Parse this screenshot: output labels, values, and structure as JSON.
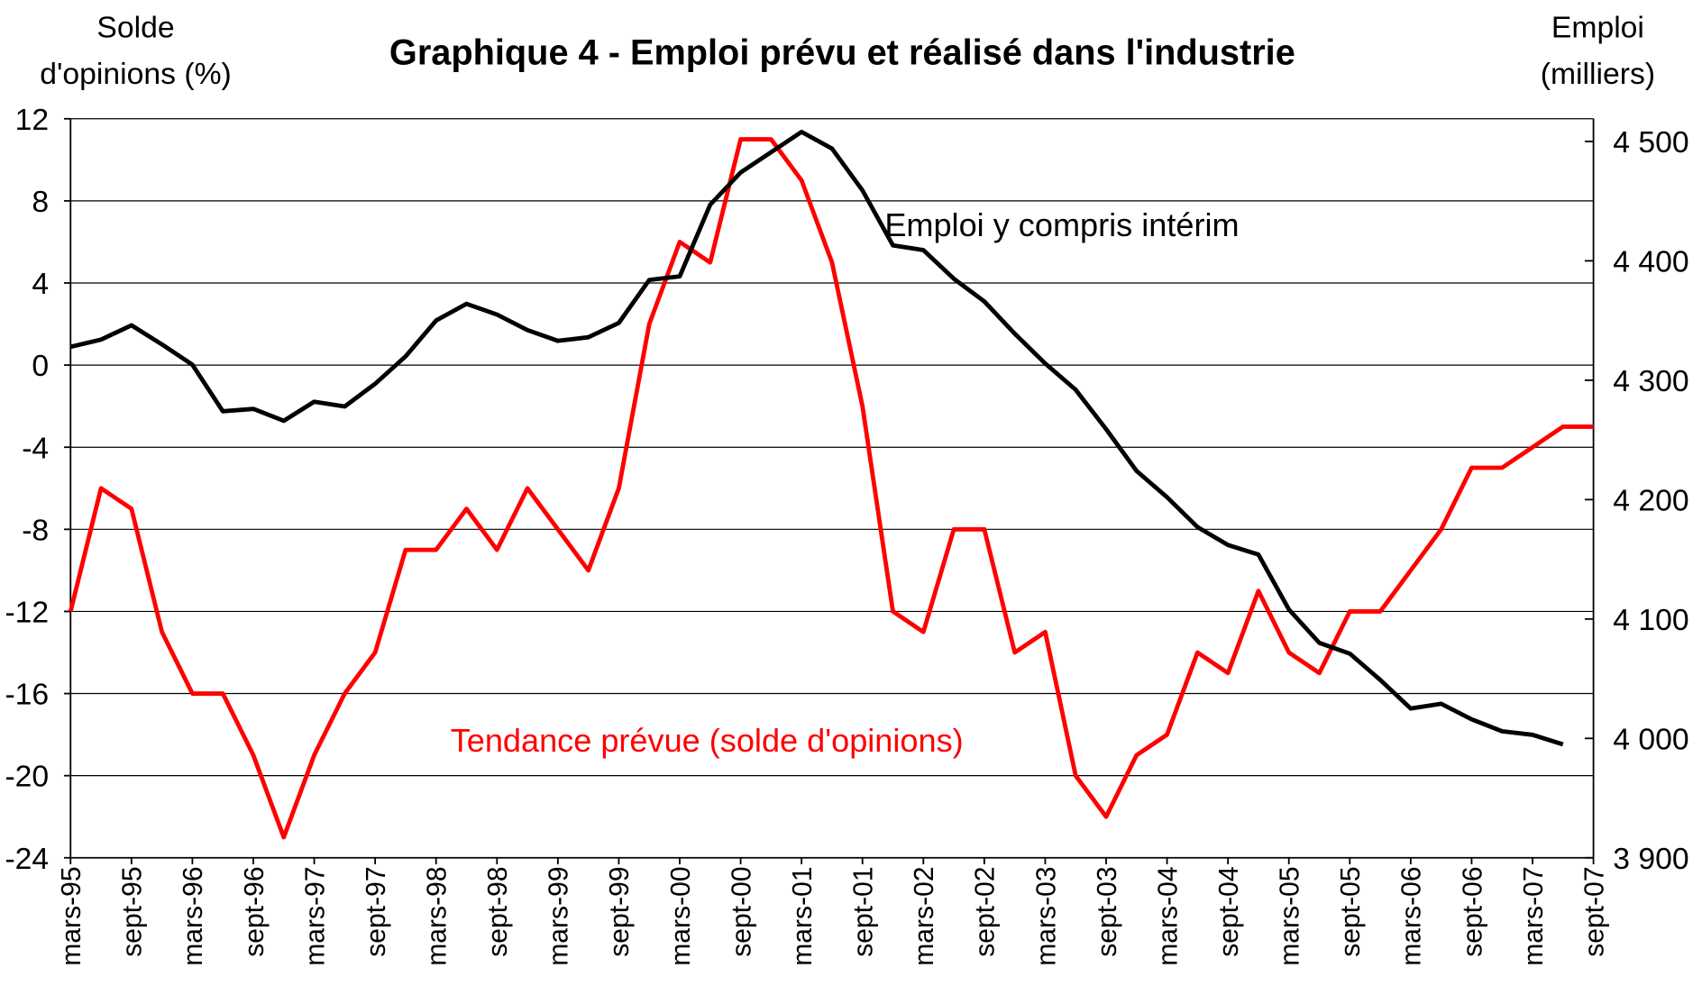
{
  "chart_data": {
    "type": "line",
    "title": "Graphique 4 - Emploi prévu et réalisé dans l'industrie",
    "y_label": [
      "Solde",
      "d'opinions (%)"
    ],
    "y2_label": [
      "Emploi",
      "(milliers)"
    ],
    "categories": [
      "mars-95",
      null,
      "sept-95",
      null,
      "mars-96",
      null,
      "sept-96",
      null,
      "mars-97",
      null,
      "sept-97",
      null,
      "mars-98",
      null,
      "sept-98",
      null,
      "mars-99",
      null,
      "sept-99",
      null,
      "mars-00",
      null,
      "sept-00",
      null,
      "mars-01",
      null,
      "sept-01",
      null,
      "mars-02",
      null,
      "sept-02",
      null,
      "mars-03",
      null,
      "sept-03",
      null,
      "mars-04",
      null,
      "sept-04",
      null,
      "mars-05",
      null,
      "sept-05",
      null,
      "mars-06",
      null,
      "sept-06",
      null,
      "mars-07",
      null,
      "sept-07"
    ],
    "series": [
      {
        "name": "Tendance prévue (solde d'opinions)",
        "color": "#ff0000",
        "axis": "y",
        "values": [
          -12,
          -6,
          -7,
          -13,
          -16,
          -16,
          -19,
          -23,
          -19,
          -16,
          -14,
          -9,
          -9,
          -7,
          -9,
          -6,
          -8,
          -10,
          -6,
          2,
          6,
          5,
          11,
          11,
          9,
          5,
          -2,
          -12,
          -13,
          -8,
          -8,
          -14,
          -13,
          -20,
          -22,
          -19,
          -18,
          -14,
          -15,
          -11,
          -14,
          -15,
          -12,
          -12,
          -10,
          -8,
          -5,
          -5,
          -4,
          -3,
          -3
        ]
      },
      {
        "name": "Emploi y compris intérim",
        "color": "#000000",
        "axis": "y2",
        "values": [
          4328,
          4334,
          4346,
          4330,
          4313,
          4274,
          4276,
          4266,
          4282,
          4278,
          4297,
          4320,
          4350,
          4364,
          4355,
          4342,
          4333,
          4336,
          4348,
          4384,
          4387,
          4447,
          4474,
          4491,
          4508,
          4494,
          4459,
          4413,
          4409,
          4385,
          4366,
          4339,
          4314,
          4292,
          4259,
          4224,
          4202,
          4177,
          4162,
          4154,
          4108,
          4080,
          4071,
          4049,
          4025,
          4029,
          4016,
          4006,
          4003,
          3995,
          null
        ]
      }
    ],
    "ylim": [
      -24,
      12
    ],
    "yticks": [
      -24,
      -20,
      -16,
      -12,
      -8,
      -4,
      0,
      4,
      8,
      12
    ],
    "y2lim": [
      3900,
      4519
    ],
    "y2ticks": [
      {
        "value": 3900,
        "label": "3 900"
      },
      {
        "value": 4000,
        "label": "4 000"
      },
      {
        "value": 4100,
        "label": "4 100"
      },
      {
        "value": 4200,
        "label": "4 200"
      },
      {
        "value": 4300,
        "label": "4 300"
      },
      {
        "value": 4400,
        "label": "4 400"
      },
      {
        "value": 4500,
        "label": "4 500"
      }
    ],
    "grid": true
  }
}
